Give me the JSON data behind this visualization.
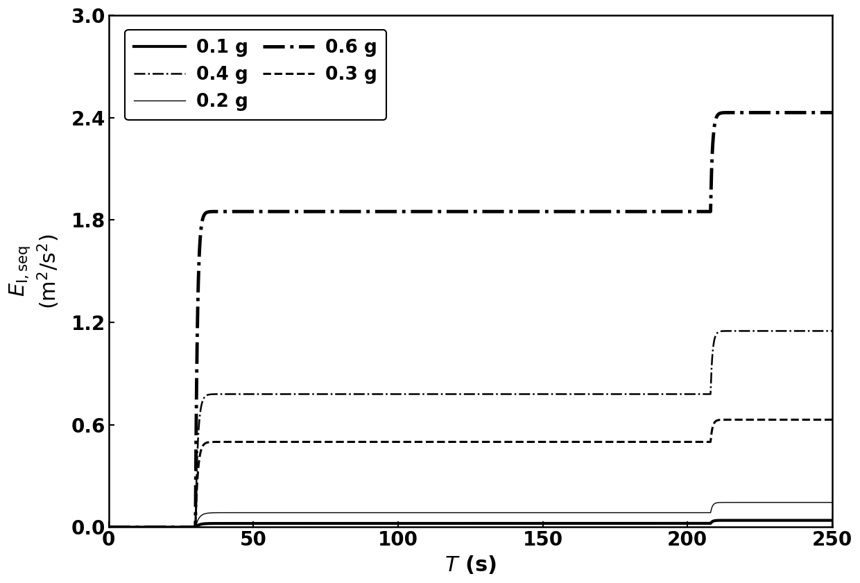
{
  "xlabel": "$T$ (s)",
  "ylabel": "$E_{\\mathrm{I,seq}}\\,(\\mathrm{m}^2/\\mathrm{s}^2)$",
  "xlim": [
    0,
    250
  ],
  "ylim": [
    0.0,
    3.0
  ],
  "yticks": [
    0.0,
    0.6,
    1.2,
    1.8,
    2.4,
    3.0
  ],
  "xticks": [
    0,
    50,
    100,
    150,
    200,
    250
  ],
  "background_color": "#ffffff",
  "series": [
    {
      "label": "0.1 g",
      "linestyle": "solid",
      "linewidth": 3.0,
      "main_plateau": 0.022,
      "after_plateau": 0.04,
      "main_shock_t": 30,
      "aftershock_t": 208,
      "rise_speed_main": 0.8,
      "rise_speed_after": 1.5
    },
    {
      "label": "0.2 g",
      "linestyle": "solid",
      "linewidth": 1.0,
      "main_plateau": 0.085,
      "after_plateau": 0.145,
      "main_shock_t": 30,
      "aftershock_t": 208,
      "rise_speed_main": 0.8,
      "rise_speed_after": 1.5
    },
    {
      "label": "0.3 g",
      "linestyle": "dashed",
      "linewidth": 2.2,
      "main_plateau": 0.5,
      "after_plateau": 0.63,
      "main_shock_t": 30,
      "aftershock_t": 208,
      "rise_speed_main": 1.2,
      "rise_speed_after": 1.5
    },
    {
      "label": "0.4 g",
      "linestyle": "dashdot",
      "linewidth": 1.8,
      "main_plateau": 0.78,
      "after_plateau": 1.15,
      "main_shock_t": 30,
      "aftershock_t": 208,
      "rise_speed_main": 1.2,
      "rise_speed_after": 1.5
    },
    {
      "label": "0.6 g",
      "linestyle": "dashdot",
      "linewidth": 3.5,
      "main_plateau": 1.85,
      "after_plateau": 2.43,
      "main_shock_t": 30,
      "aftershock_t": 208,
      "rise_speed_main": 1.5,
      "rise_speed_after": 1.5
    }
  ],
  "font_size": 22,
  "legend_font_size": 19,
  "tick_font_size": 20
}
